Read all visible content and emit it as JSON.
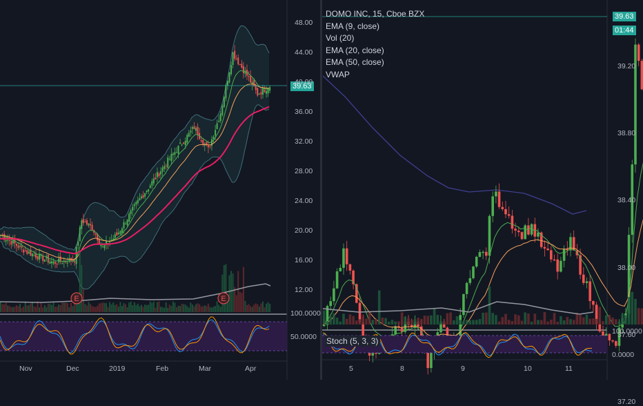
{
  "left_chart": {
    "price_badge": "39.63",
    "y_ticks": [
      "48.00",
      "44.00",
      "40.00",
      "36.00",
      "32.00",
      "28.00",
      "24.00",
      "20.00",
      "16.00",
      "12.00"
    ],
    "x_ticks": [
      "Nov",
      "Dec",
      "2019",
      "Feb",
      "Mar",
      "Apr"
    ],
    "earnings_marker": "E",
    "stoch_ticks": [
      "100.0000",
      "50.0000"
    ]
  },
  "right_chart": {
    "legend": [
      "DOMO INC, 15, Cboe BZX",
      "EMA (9, close)",
      "Vol (20)",
      "EMA (20, close)",
      "EMA (50, close)",
      "VWAP"
    ],
    "price_badge": "39.63",
    "countdown": "01:44",
    "y_ticks": [
      "39.20",
      "38.80",
      "38.40",
      "38.00",
      "37.60",
      "37.20"
    ],
    "x_ticks": [
      "5",
      "8",
      "9",
      "10",
      "11"
    ],
    "stoch_label": "Stoch (5, 3, 3)",
    "stoch_ticks": [
      "100.0000",
      "0.0000"
    ]
  },
  "colors": {
    "background": "#131722",
    "up": "#4caf50",
    "down": "#ef5350",
    "ema_fast": "#4caf50",
    "ema_mid": "#f7a35c",
    "ema_slow": "#e91e63",
    "bands": "#3f6f7a",
    "stoch_fill": "#2c1b45",
    "badge": "#26a69a"
  }
}
